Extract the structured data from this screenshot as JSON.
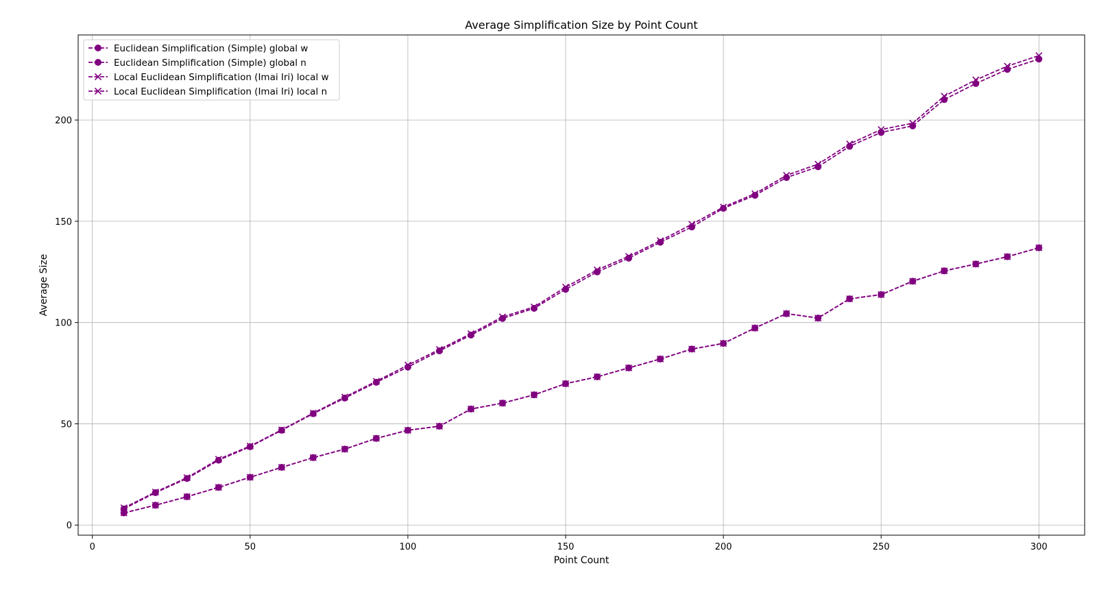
{
  "chart_data": {
    "type": "line",
    "title": "Average Simplification Size by Point Count",
    "xlabel": "Point Count",
    "ylabel": "Average Size",
    "xlim": [
      -4.5,
      314.5
    ],
    "ylim": [
      -5,
      242
    ],
    "xticks": [
      0,
      50,
      100,
      150,
      200,
      250,
      300
    ],
    "yticks": [
      0,
      50,
      100,
      150,
      200
    ],
    "grid": true,
    "legend_position": "top-left",
    "color": "#800080",
    "x": [
      10,
      20,
      30,
      40,
      50,
      60,
      70,
      80,
      90,
      100,
      110,
      120,
      130,
      140,
      150,
      160,
      170,
      180,
      190,
      200,
      210,
      220,
      230,
      240,
      250,
      260,
      270,
      280,
      290,
      300
    ],
    "series": [
      {
        "name": "Euclidean Simplification (Simple) global w",
        "marker": "circle",
        "values": [
          6,
          9.8,
          14,
          18.6,
          23.6,
          28.5,
          33.3,
          37.5,
          42.8,
          46.8,
          48.8,
          57.3,
          60.2,
          64.3,
          69.8,
          73.2,
          77.6,
          82,
          86.9,
          89.7,
          97.3,
          104.4,
          102.2,
          111.7,
          113.8,
          120.4,
          125.5,
          128.9,
          132.5,
          136.9
        ]
      },
      {
        "name": "Euclidean Simplification (Simple) global n",
        "marker": "circle",
        "values": [
          8,
          16,
          23,
          32,
          38.7,
          46.8,
          55,
          62.7,
          70.5,
          78,
          86,
          93.8,
          102,
          107,
          116.4,
          125,
          131.8,
          139.6,
          147.2,
          156.4,
          162.8,
          171.6,
          176.9,
          187,
          193.9,
          197.1,
          210.1,
          218,
          225,
          230.1
        ]
      },
      {
        "name": "Local Euclidean Simplification (Imai Iri) local w",
        "marker": "x",
        "values": [
          6,
          9.8,
          14,
          18.6,
          23.6,
          28.5,
          33.3,
          37.5,
          42.8,
          46.8,
          48.8,
          57.3,
          60.2,
          64.3,
          69.8,
          73.2,
          77.6,
          82,
          86.9,
          89.7,
          97.3,
          104.4,
          102.2,
          111.7,
          113.8,
          120.4,
          125.5,
          128.9,
          132.5,
          136.9
        ]
      },
      {
        "name": "Local Euclidean Simplification (Imai Iri) local n",
        "marker": "x",
        "values": [
          8.5,
          16.3,
          23.4,
          32.5,
          39,
          47,
          55.3,
          63.2,
          71,
          79,
          86.7,
          94.5,
          102.8,
          107.7,
          117.5,
          126,
          132.7,
          140.4,
          148.5,
          157,
          163.6,
          172.7,
          178.2,
          188.2,
          195.3,
          198.4,
          211.8,
          219.8,
          226.6,
          231.8
        ]
      }
    ]
  }
}
